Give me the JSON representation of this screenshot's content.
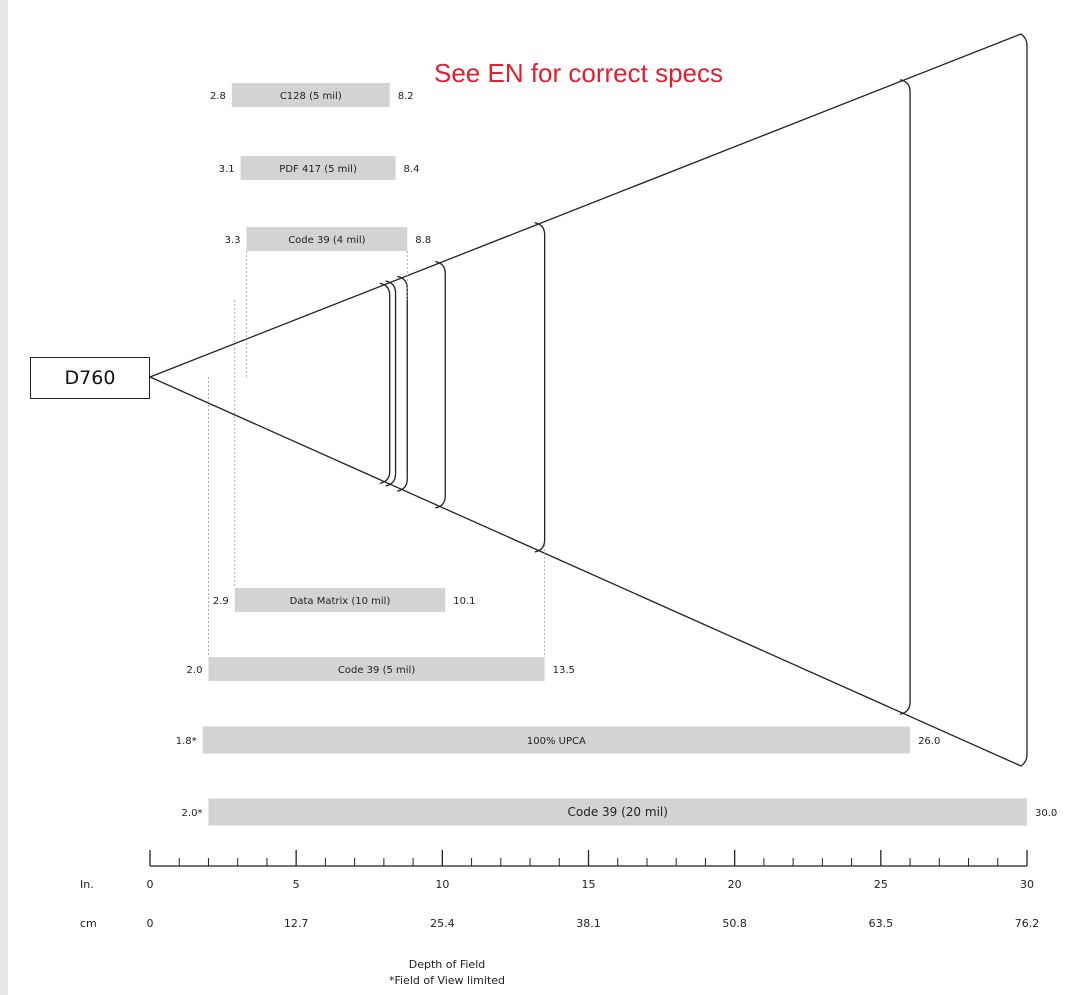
{
  "device": "D760",
  "notice": "See EN for correct specs",
  "footer": {
    "line1": "Depth of Field",
    "line2": "*Field of View limited"
  },
  "colors": {
    "bar": "#d3d3d3",
    "notice": "#e02030",
    "line": "#222222"
  },
  "chart_data": {
    "type": "bar",
    "orientation": "horizontal-range",
    "x_unit": "in",
    "xlim": [
      0,
      30
    ],
    "axes": {
      "in": {
        "label": "In.",
        "ticks": [
          "0",
          "5",
          "10",
          "15",
          "20",
          "25",
          "30"
        ]
      },
      "cm": {
        "label": "cm",
        "ticks": [
          "0",
          "12.7",
          "25.4",
          "38.1",
          "50.8",
          "63.5",
          "76.2"
        ]
      }
    },
    "series": [
      {
        "label": "C128 (5 mil)",
        "start": 2.8,
        "end": 8.2,
        "start_label": "2.8",
        "end_label": "8.2"
      },
      {
        "label": "PDF 417 (5 mil)",
        "start": 3.1,
        "end": 8.4,
        "start_label": "3.1",
        "end_label": "8.4"
      },
      {
        "label": "Code 39 (4 mil)",
        "start": 3.3,
        "end": 8.8,
        "start_label": "3.3",
        "end_label": "8.8"
      },
      {
        "label": "Data Matrix (10 mil)",
        "start": 2.9,
        "end": 10.1,
        "start_label": "2.9",
        "end_label": "10.1"
      },
      {
        "label": "Code 39 (5 mil)",
        "start": 2.0,
        "end": 13.5,
        "start_label": "2.0",
        "end_label": "13.5"
      },
      {
        "label": "100% UPCA",
        "start": 1.8,
        "end": 26.0,
        "start_label": "1.8*",
        "end_label": "26.0"
      },
      {
        "label": "Code 39 (20 mil)",
        "start": 2.0,
        "end": 30.0,
        "start_label": "2.0*",
        "end_label": "30.0"
      }
    ]
  }
}
